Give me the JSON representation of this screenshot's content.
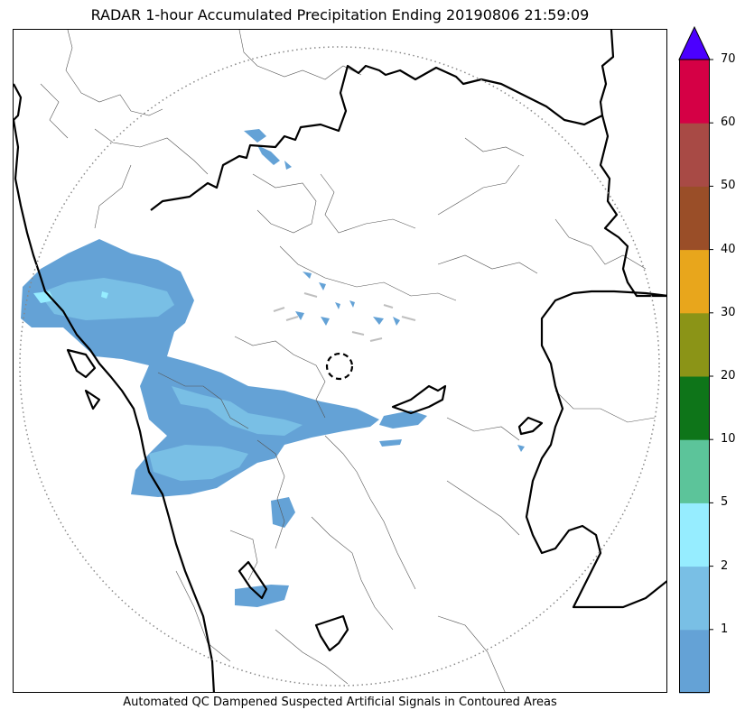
{
  "title": "RADAR 1-hour Accumulated Precipitation Ending 20190806 21:59:09",
  "footer": "Automated QC Dampened Suspected Artificial Signals in Contoured Areas",
  "colorbar": {
    "extend": "max",
    "extend_color": "#4B00FF",
    "bins": [
      {
        "lower": 0,
        "upper": 1,
        "color": "#64A2D6"
      },
      {
        "lower": 1,
        "upper": 2,
        "color": "#79BFE5"
      },
      {
        "lower": 2,
        "upper": 5,
        "color": "#96EDFF"
      },
      {
        "lower": 5,
        "upper": 10,
        "color": "#5CC49A"
      },
      {
        "lower": 10,
        "upper": 20,
        "color": "#0E7519"
      },
      {
        "lower": 20,
        "upper": 30,
        "color": "#8B9417"
      },
      {
        "lower": 30,
        "upper": 40,
        "color": "#E8A61C"
      },
      {
        "lower": 40,
        "upper": 50,
        "color": "#9A4E28"
      },
      {
        "lower": 50,
        "upper": 60,
        "color": "#A84A45"
      },
      {
        "lower": 60,
        "upper": 70,
        "color": "#D50045"
      }
    ],
    "tick_labels": [
      "1",
      "2",
      "5",
      "10",
      "20",
      "30",
      "40",
      "50",
      "60",
      "70"
    ]
  },
  "map": {
    "range_ring_style": "dotted grey",
    "radar_site_marker": "dashed black circle",
    "state_boundary_color": "#000000",
    "district_boundary_color": "#555555",
    "qc_contour_color": "#bfbfbf"
  }
}
